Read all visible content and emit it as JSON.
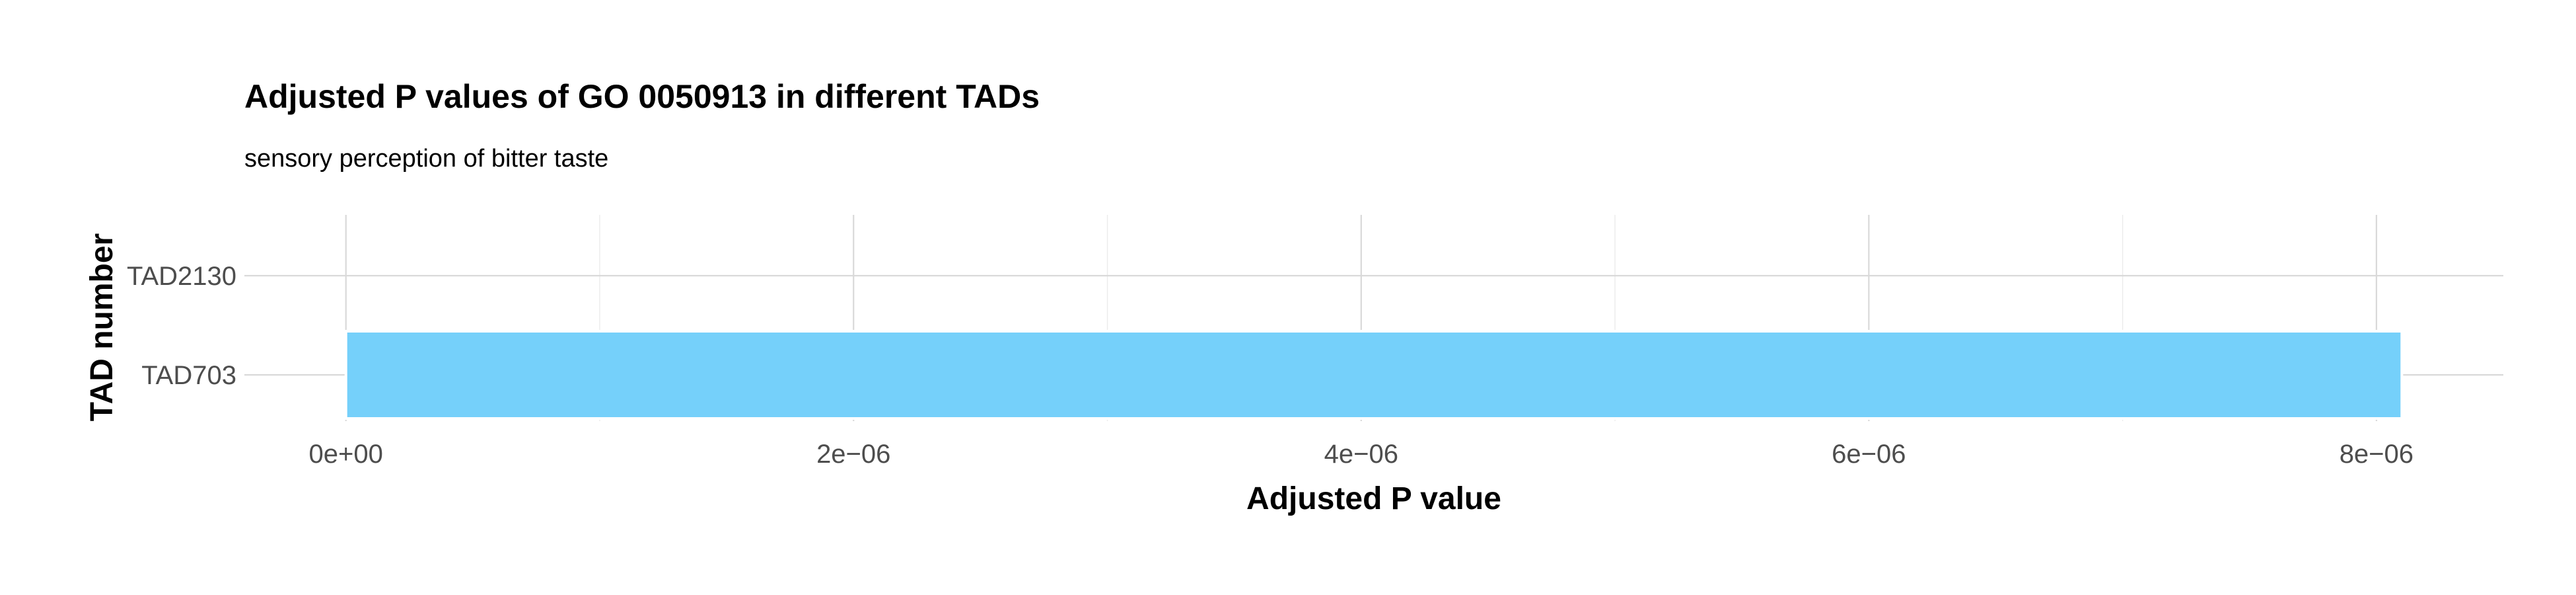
{
  "chart_data": {
    "type": "bar",
    "orientation": "horizontal",
    "title": "Adjusted P values of GO 0050913 in different TADs",
    "subtitle": "sensory perception of bitter taste",
    "xlabel": "Adjusted P value",
    "ylabel": "TAD number",
    "categories": [
      "TAD2130",
      "TAD703"
    ],
    "values": [
      null,
      8.1e-06
    ],
    "xlim": [
      -4e-07,
      8.5e-06
    ],
    "x_ticks": [
      0,
      2e-06,
      4e-06,
      6e-06,
      8e-06
    ],
    "x_tick_labels": [
      "0e+00",
      "2e−06",
      "4e−06",
      "6e−06",
      "8e−06"
    ],
    "x_minor_ticks": [
      1e-06,
      3e-06,
      5e-06,
      7e-06
    ],
    "grid": true,
    "legend": "none",
    "bar_color": "#75D0FA",
    "bar_edge_color": "#ffffff"
  }
}
